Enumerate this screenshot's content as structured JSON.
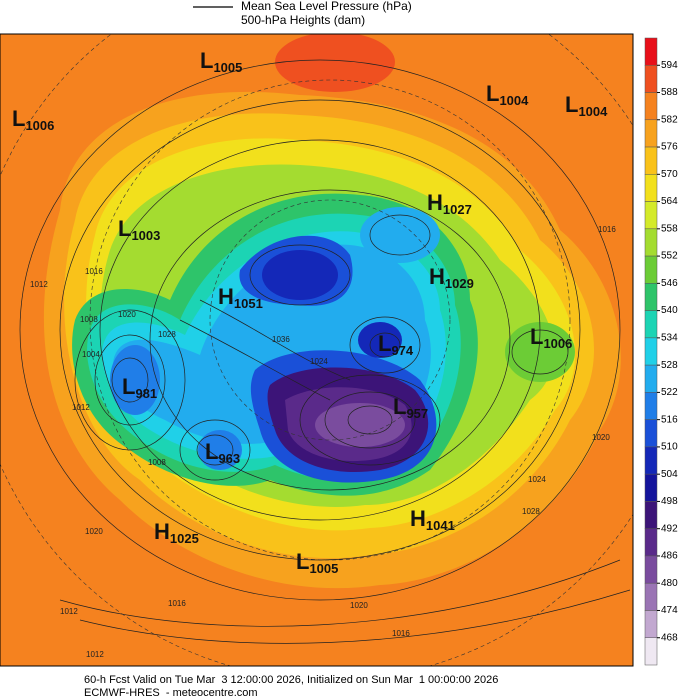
{
  "header": {
    "line1": "Mean Sea Level Pressure (hPa)",
    "line2": "500-hPa Heights (dam)"
  },
  "centers": [
    {
      "letter": "L",
      "value": "1005"
    },
    {
      "letter": "L",
      "value": "1006"
    },
    {
      "letter": "L",
      "value": "1004"
    },
    {
      "letter": "L",
      "value": "1004"
    },
    {
      "letter": "H",
      "value": "1027"
    },
    {
      "letter": "L",
      "value": "1003"
    },
    {
      "letter": "H",
      "value": "1029"
    },
    {
      "letter": "H",
      "value": "1051"
    },
    {
      "letter": "L",
      "value": "974"
    },
    {
      "letter": "L",
      "value": "1006"
    },
    {
      "letter": "L",
      "value": "981"
    },
    {
      "letter": "L",
      "value": "957"
    },
    {
      "letter": "L",
      "value": "963"
    },
    {
      "letter": "H",
      "value": "1041"
    },
    {
      "letter": "H",
      "value": "1025"
    },
    {
      "letter": "L",
      "value": "1005"
    }
  ],
  "isobar_labels": [
    "1012",
    "1016",
    "1008",
    "1004",
    "1012",
    "1020",
    "1028",
    "1036",
    "1024",
    "1008",
    "1012",
    "1016",
    "1020",
    "1024",
    "1028",
    "1020",
    "1016",
    "1012",
    "1020",
    "1016"
  ],
  "colorbar": {
    "labels": [
      594,
      588,
      582,
      576,
      570,
      564,
      558,
      552,
      546,
      540,
      534,
      528,
      522,
      516,
      510,
      504,
      498,
      492,
      486,
      480,
      474,
      468
    ],
    "colors": [
      "#e8101a",
      "#ef5020",
      "#f5821f",
      "#f7a21e",
      "#f9c21a",
      "#f2e01c",
      "#d4ea2a",
      "#a4dc30",
      "#6ccc36",
      "#2ec46a",
      "#1cd4b4",
      "#20d0e8",
      "#22acee",
      "#207ee8",
      "#1a50d8",
      "#1428b8",
      "#14149c",
      "#3c1478",
      "#5a2a8a",
      "#7a4c9e",
      "#9a74b4",
      "#c2a8d0",
      "#efe8f2"
    ]
  },
  "footer": {
    "line1": "60-h Fcst Valid on Tue Mar  3 12:00:00 2026, Initialized on Sun Mar  1 00:00:00 2026",
    "line2": "ECMWF-HRES  - meteocentre.com"
  }
}
